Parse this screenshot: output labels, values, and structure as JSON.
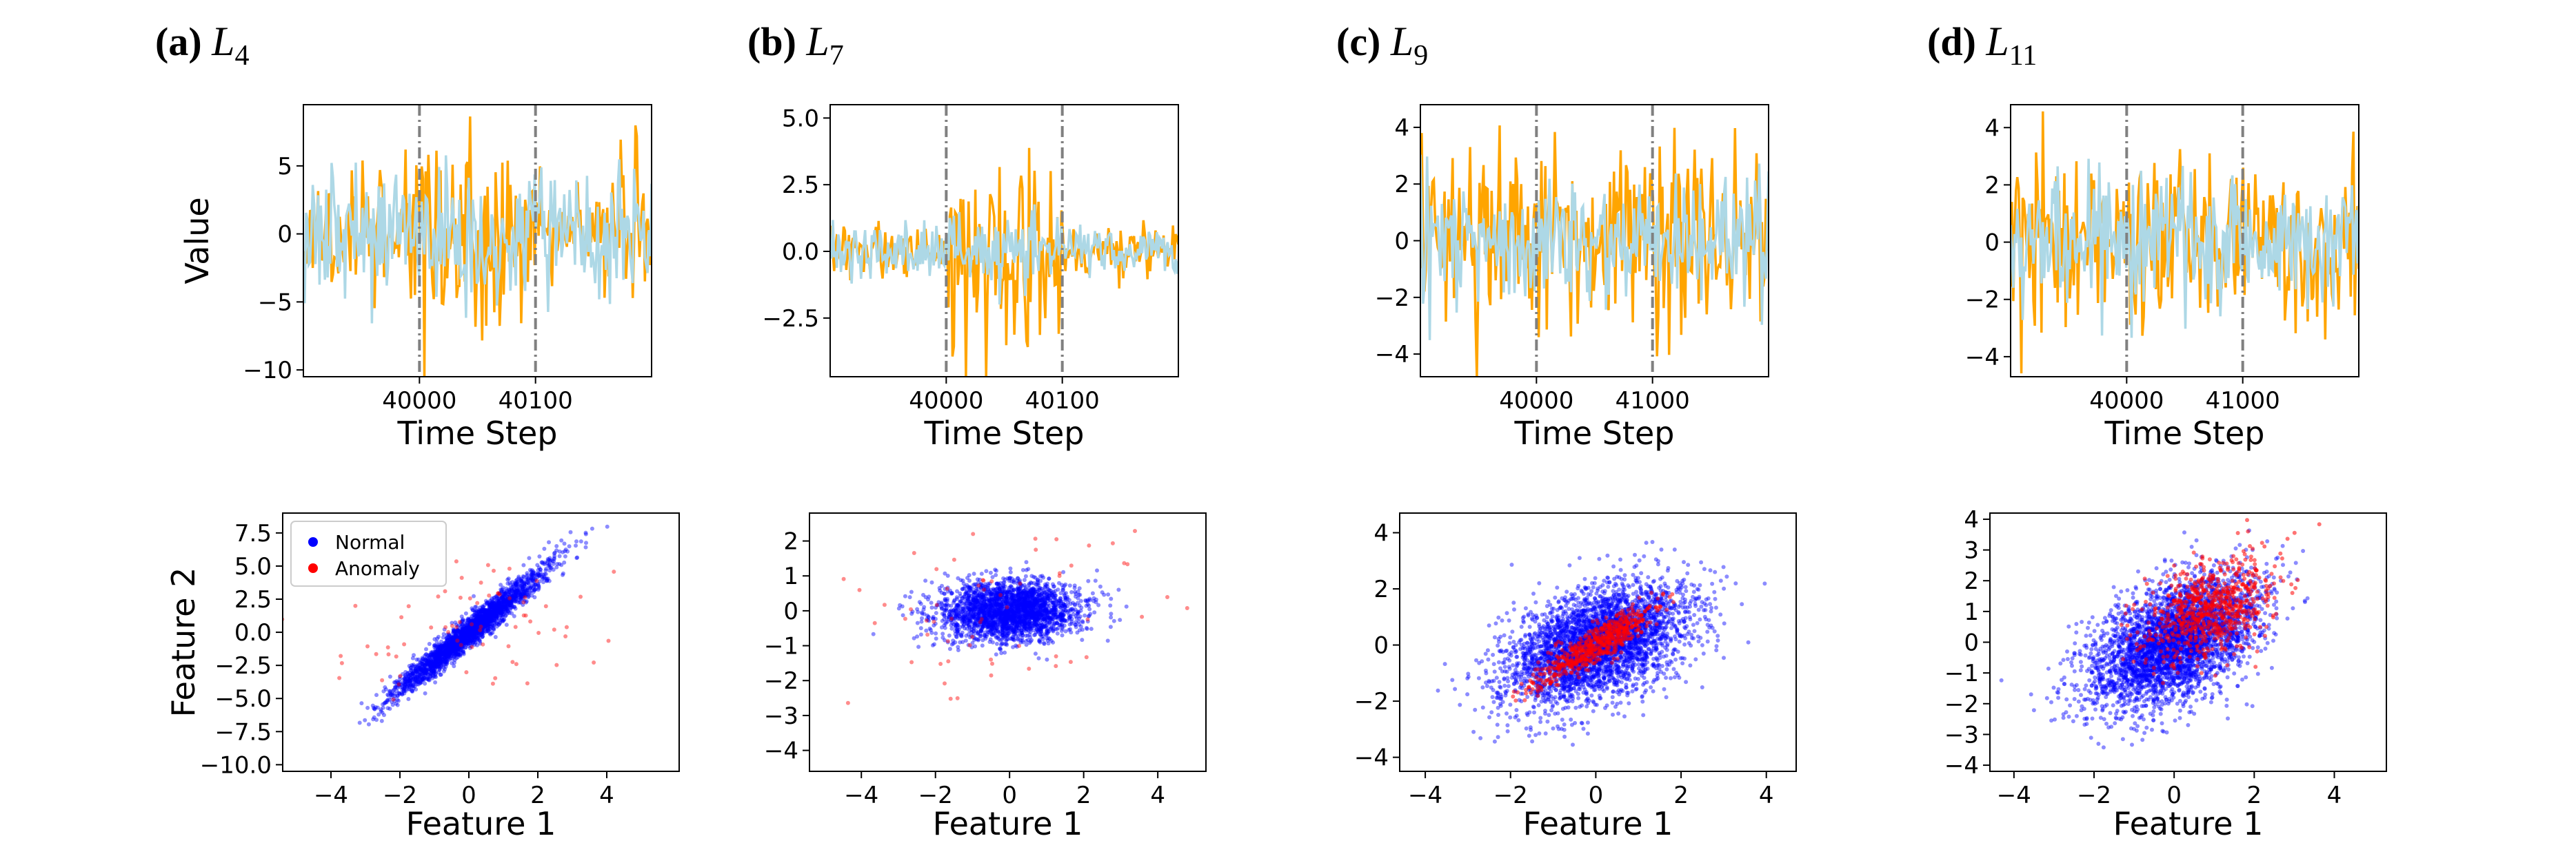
{
  "chart_data": {
    "type": "line",
    "colors": {
      "series_a": "#FFA500",
      "series_b": "#ADD8E6",
      "normal": "#0000FF",
      "anomaly": "#FF0000",
      "vline": "#808080"
    },
    "top_row_ylabel": "Value",
    "bottom_row_ylabel": "Feature 2",
    "legend": {
      "placement": "upper-left",
      "entries": [
        "Normal",
        "Anomaly"
      ]
    },
    "panels": [
      {
        "label": "(a)",
        "math_base": "L",
        "math_sub": "4",
        "timeseries": {
          "xlabel": "Time Step",
          "xlim": [
            39900,
            40200
          ],
          "ylim": [
            -10.5,
            9.5
          ],
          "xticks": [
            40000,
            40100
          ],
          "yticks": [
            5,
            0,
            -5,
            -10
          ],
          "ytick_labels": [
            "5",
            "0",
            "−5",
            "−10"
          ],
          "vlines": [
            40000,
            40100
          ],
          "seed": 11,
          "normal_amp": 4.2,
          "anomaly_amp": 5.6,
          "anomaly_range": [
            40000,
            40100
          ]
        },
        "scatter": {
          "xlabel": "Feature 1",
          "xlim": [
            -5.4,
            6.1
          ],
          "ylim": [
            -10.5,
            9.0
          ],
          "xticks": [
            -4,
            -2,
            0,
            2,
            4
          ],
          "xtick_labels": [
            "−4",
            "−2",
            "0",
            "2",
            "4"
          ],
          "yticks": [
            7.5,
            5.0,
            2.5,
            0.0,
            -2.5,
            -5.0,
            -7.5,
            -10.0
          ],
          "ytick_labels": [
            "7.5",
            "5.0",
            "2.5",
            "0.0",
            "−2.5",
            "−5.0",
            "−7.5",
            "−10.0"
          ],
          "normal": {
            "sx": 1.1,
            "sy": 2.4,
            "corr": 0.97,
            "n": 2600
          },
          "anomaly": {
            "kind": "spread",
            "sx": 2.0,
            "sy": 2.6,
            "corr": 0.3,
            "n": 70
          },
          "legend": true,
          "seed": 21
        }
      },
      {
        "label": "(b)",
        "math_base": "L",
        "math_sub": "7",
        "timeseries": {
          "xlabel": "Time Step",
          "xlim": [
            39900,
            40200
          ],
          "ylim": [
            -4.7,
            5.5
          ],
          "xticks": [
            40000,
            40100
          ],
          "yticks": [
            5.0,
            2.5,
            0.0,
            -2.5
          ],
          "ytick_labels": [
            "5.0",
            "2.5",
            "0.0",
            "−2.5"
          ],
          "vlines": [
            40000,
            40100
          ],
          "seed": 12,
          "normal_amp": 0.9,
          "anomaly_amp": 3.4,
          "anomaly_range": [
            40000,
            40100
          ]
        },
        "scatter": {
          "xlabel": "Feature 1",
          "xlim": [
            -5.4,
            5.3
          ],
          "ylim": [
            -4.6,
            2.8
          ],
          "xticks": [
            -4,
            -2,
            0,
            2,
            4
          ],
          "xtick_labels": [
            "−4",
            "−2",
            "0",
            "2",
            "4"
          ],
          "yticks": [
            2,
            1,
            0,
            -1,
            -2,
            -3,
            -4
          ],
          "ytick_labels": [
            "2",
            "1",
            "0",
            "−1",
            "−2",
            "−3",
            "−4"
          ],
          "normal": {
            "sx": 0.95,
            "sy": 0.42,
            "corr": 0.1,
            "n": 2600
          },
          "anomaly": {
            "kind": "spread",
            "sx": 2.3,
            "sy": 1.3,
            "corr": 0.2,
            "n": 60
          },
          "legend": false,
          "seed": 22
        }
      },
      {
        "label": "(c)",
        "math_base": "L",
        "math_sub": "9",
        "timeseries": {
          "xlabel": "Time Step",
          "xlim": [
            39000,
            42000
          ],
          "ylim": [
            -4.8,
            4.8
          ],
          "xticks": [
            40000,
            41000
          ],
          "yticks": [
            4,
            2,
            0,
            -2,
            -4
          ],
          "ytick_labels": [
            "4",
            "2",
            "0",
            "−2",
            "−4"
          ],
          "vlines": [
            40000,
            41000
          ],
          "seed": 13,
          "normal_amp": 2.3,
          "anomaly_amp": 2.6,
          "anomaly_range": [
            39000,
            42000
          ]
        },
        "scatter": {
          "xlabel": "Feature 1",
          "xlim": [
            -4.6,
            4.7
          ],
          "ylim": [
            -4.5,
            4.7
          ],
          "xticks": [
            -4,
            -2,
            0,
            2,
            4
          ],
          "xtick_labels": [
            "−4",
            "−2",
            "0",
            "2",
            "4"
          ],
          "yticks": [
            4,
            2,
            0,
            -2,
            -4
          ],
          "ytick_labels": [
            "4",
            "2",
            "0",
            "−2",
            "−4"
          ],
          "normal": {
            "sx": 1.05,
            "sy": 1.05,
            "corr": 0.45,
            "n": 3600
          },
          "anomaly": {
            "kind": "cluster",
            "mx": 0.0,
            "my": 0.0,
            "sx": 0.75,
            "sy": 0.75,
            "corr": 0.9,
            "n": 600
          },
          "legend": false,
          "seed": 23
        }
      },
      {
        "label": "(d)",
        "math_base": "L",
        "math_sub": "11",
        "timeseries": {
          "xlabel": "Time Step",
          "xlim": [
            39000,
            42000
          ],
          "ylim": [
            -4.7,
            4.8
          ],
          "xticks": [
            40000,
            41000
          ],
          "yticks": [
            4,
            2,
            0,
            -2,
            -4
          ],
          "ytick_labels": [
            "4",
            "2",
            "0",
            "−2",
            "−4"
          ],
          "vlines": [
            40000,
            41000
          ],
          "seed": 14,
          "normal_amp": 2.2,
          "anomaly_amp": 2.5,
          "anomaly_range": [
            39000,
            42000
          ]
        },
        "scatter": {
          "xlabel": "Feature 1",
          "xlim": [
            -4.6,
            5.3
          ],
          "ylim": [
            -4.2,
            4.2
          ],
          "xticks": [
            -4,
            -2,
            0,
            2,
            4
          ],
          "xtick_labels": [
            "−4",
            "−2",
            "0",
            "2",
            "4"
          ],
          "yticks": [
            4,
            3,
            2,
            1,
            0,
            -1,
            -2,
            -3,
            -4
          ],
          "ytick_labels": [
            "4",
            "3",
            "2",
            "1",
            "0",
            "−1",
            "−2",
            "−3",
            "−4"
          ],
          "normal": {
            "sx": 1.05,
            "sy": 1.05,
            "corr": 0.5,
            "n": 3600
          },
          "anomaly": {
            "kind": "cluster",
            "mx": 0.9,
            "my": 1.1,
            "sx": 0.85,
            "sy": 0.85,
            "corr": 0.4,
            "n": 700
          },
          "legend": false,
          "seed": 24
        }
      }
    ]
  }
}
